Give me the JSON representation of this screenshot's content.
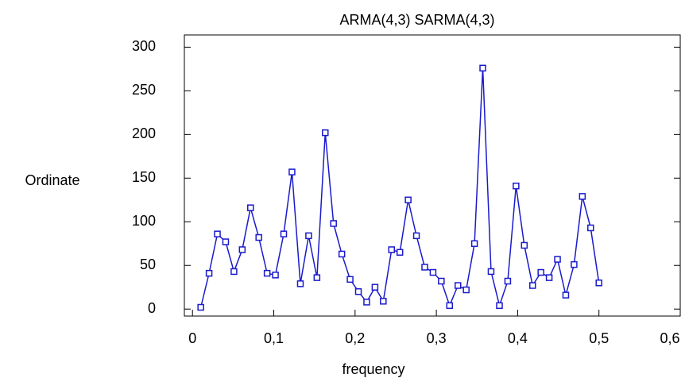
{
  "chart_data": {
    "type": "line",
    "title": "ARMA(4,3) SARMA(4,3)",
    "x_label": "frequency",
    "y_label": "Ordinate",
    "x": [
      0.0102,
      0.0204,
      0.0306,
      0.0408,
      0.051,
      0.0612,
      0.0714,
      0.0816,
      0.0918,
      0.102,
      0.1122,
      0.1224,
      0.1327,
      0.1429,
      0.1531,
      0.1633,
      0.1735,
      0.1837,
      0.1939,
      0.2041,
      0.2143,
      0.2245,
      0.2347,
      0.2449,
      0.2551,
      0.2653,
      0.2755,
      0.2857,
      0.2959,
      0.3061,
      0.3163,
      0.3265,
      0.3367,
      0.3469,
      0.3571,
      0.3673,
      0.3776,
      0.3878,
      0.398,
      0.4082,
      0.4184,
      0.4286,
      0.4388,
      0.449,
      0.4592,
      0.4694,
      0.4796,
      0.4898,
      0.5
    ],
    "series": [
      {
        "color": "#1a1acc",
        "values": [
          2,
          41,
          86,
          77,
          43,
          68,
          116,
          82,
          41,
          39,
          86,
          157,
          29,
          84,
          36,
          202,
          98,
          63,
          34,
          20,
          8,
          25,
          9,
          68,
          65,
          125,
          84,
          48,
          42,
          32,
          4,
          27,
          22,
          75,
          276,
          43,
          4,
          32,
          141,
          73,
          27,
          42,
          36,
          57,
          16,
          51,
          129,
          93,
          30
        ]
      }
    ],
    "xlim": [
      -0.01,
      0.6
    ],
    "ylim": [
      -8,
      314
    ],
    "xticks": [
      0,
      {
        "value": 0.1,
        "label": "0,1"
      },
      {
        "value": 0.2,
        "label": "0,2"
      },
      {
        "value": 0.3,
        "label": "0,3"
      },
      {
        "value": 0.4,
        "label": "0,4"
      },
      {
        "value": 0.5,
        "label": "0,5"
      },
      {
        "value": 0.6,
        "label": "0,6"
      }
    ],
    "yticks": [
      0,
      50,
      100,
      150,
      200,
      250,
      300
    ]
  }
}
